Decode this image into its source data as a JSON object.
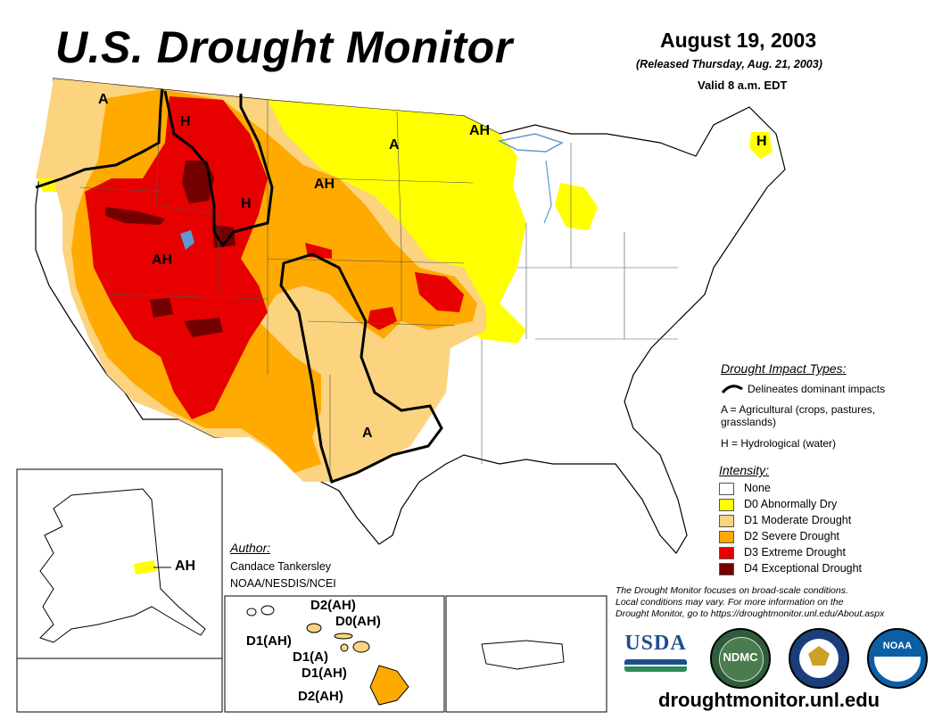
{
  "header": {
    "title": "U.S. Drought Monitor",
    "date": "August 19, 2003",
    "released": "(Released Thursday, Aug. 21, 2003)",
    "valid": "Valid 8 a.m. EDT"
  },
  "map_labels": {
    "wa": "A",
    "mt_h": "H",
    "nd": "A",
    "mn": "AH",
    "me": "H",
    "dakotas": "AH",
    "wy": "H",
    "ut": "AH",
    "tx": "A",
    "alaska": "AH"
  },
  "hawaii_labels": {
    "kauai": "D1(AH)",
    "oahu": "D2(AH)",
    "maui": "D0(AH)",
    "molokai": "D1(A)",
    "lanai": "D1(AH)",
    "big_island": "D2(AH)"
  },
  "impact_legend": {
    "heading": "Drought Impact Types:",
    "line_label": "Delineates dominant impacts",
    "a_line1": "A = Agricultural (crops, pastures,",
    "a_line2": "grasslands)",
    "h_line": "H = Hydrological (water)"
  },
  "intensity_legend": {
    "heading": "Intensity:",
    "items": [
      {
        "label": "None",
        "color": "#ffffff"
      },
      {
        "label": "D0 Abnormally Dry",
        "color": "#ffff00"
      },
      {
        "label": "D1 Moderate Drought",
        "color": "#fcd37f"
      },
      {
        "label": "D2 Severe Drought",
        "color": "#ffaa00"
      },
      {
        "label": "D3 Extreme Drought",
        "color": "#e60000"
      },
      {
        "label": "D4 Exceptional Drought",
        "color": "#730000"
      }
    ]
  },
  "author": {
    "heading": "Author:",
    "name": "Candace Tankersley",
    "org": "NOAA/NESDIS/NCEI"
  },
  "disclaimer": {
    "line1": "The Drought Monitor focuses on broad-scale conditions.",
    "line2": "Local conditions may vary. For more information on the",
    "line3": "Drought Monitor, go to https://droughtmonitor.unl.edu/About.aspx"
  },
  "logos": {
    "usda": "USDA",
    "ndmc": "NDMC",
    "noaa": "NOAA"
  },
  "footer": {
    "website": "droughtmonitor.unl.edu"
  },
  "colors": {
    "none": "#ffffff",
    "d0": "#ffff00",
    "d1": "#fcd37f",
    "d2": "#ffaa00",
    "d3": "#e60000",
    "d4": "#730000",
    "water": "#5b9bd5"
  }
}
